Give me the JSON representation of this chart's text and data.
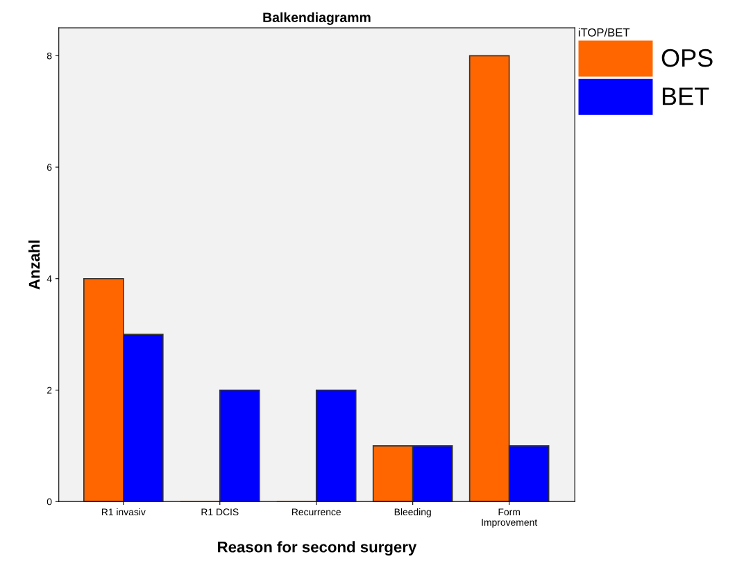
{
  "chart_data": {
    "type": "bar",
    "title": "Balkendiagramm",
    "xlabel": "Reason for second surgery",
    "ylabel": "Anzahl",
    "legend_title": "iTOP/BET",
    "categories": [
      "R1 invasiv",
      "R1 DCIS",
      "Recurrence",
      "Bleeding",
      "Form\nImprovement"
    ],
    "series": [
      {
        "name": "OPS",
        "color": "#ff6600",
        "values": [
          4,
          0,
          0,
          1,
          8
        ]
      },
      {
        "name": "BET",
        "color": "#0000ff",
        "values": [
          3,
          2,
          2,
          1,
          1
        ]
      }
    ],
    "ylim": [
      0,
      8.5
    ],
    "yticks": [
      0,
      2,
      4,
      6,
      8
    ],
    "grid": false,
    "legend": "top right"
  }
}
